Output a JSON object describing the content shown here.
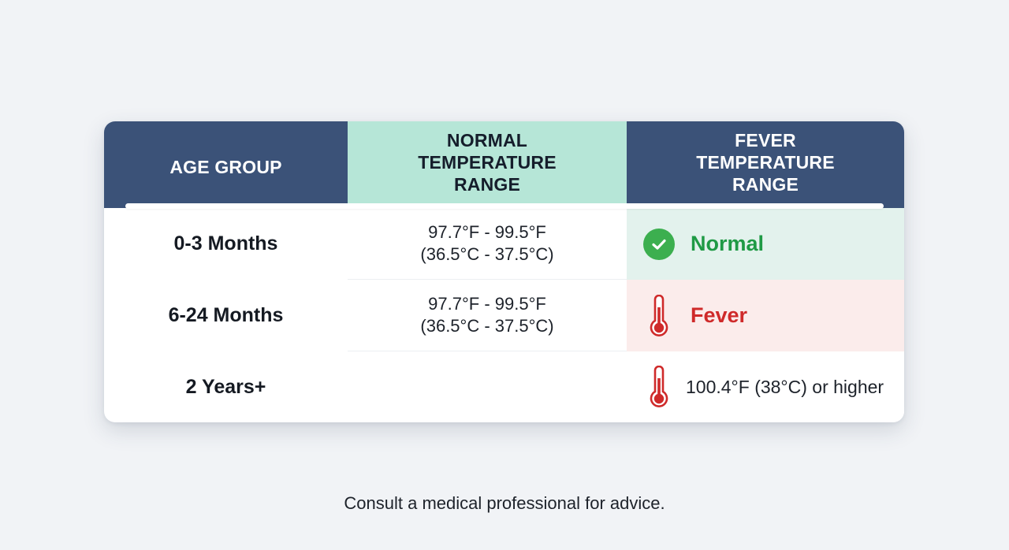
{
  "table": {
    "headers": {
      "age_group": "AGE GROUP",
      "normal_range": [
        "NORMAL",
        "TEMPERATURE",
        "RANGE"
      ],
      "fever_range": [
        "FEVER",
        "TEMPERATURE",
        "RANGE"
      ]
    },
    "rows": [
      {
        "age": "0-3 Months",
        "range_f": "97.7°F - 99.5°F",
        "range_c": "(36.5°C - 37.5°C)",
        "status": "Normal",
        "status_icon": "check-circle-icon"
      },
      {
        "age": "6-24 Months",
        "range_f": "97.7°F - 99.5°F",
        "range_c": "(36.5°C - 37.5°C)",
        "status": "Fever",
        "status_icon": "thermometer-icon"
      },
      {
        "age": "2 Years+",
        "range_f": "",
        "range_c": "",
        "status": "100.4°F (38°C) or higher",
        "status_icon": "thermometer-icon"
      }
    ]
  },
  "footer": {
    "note": "Consult a medical professional for advice."
  },
  "colors": {
    "header_dark": "#3b5278",
    "header_mint": "#b6e6d7",
    "normal_green": "#1f9a45",
    "fever_red": "#cf2a2a"
  }
}
